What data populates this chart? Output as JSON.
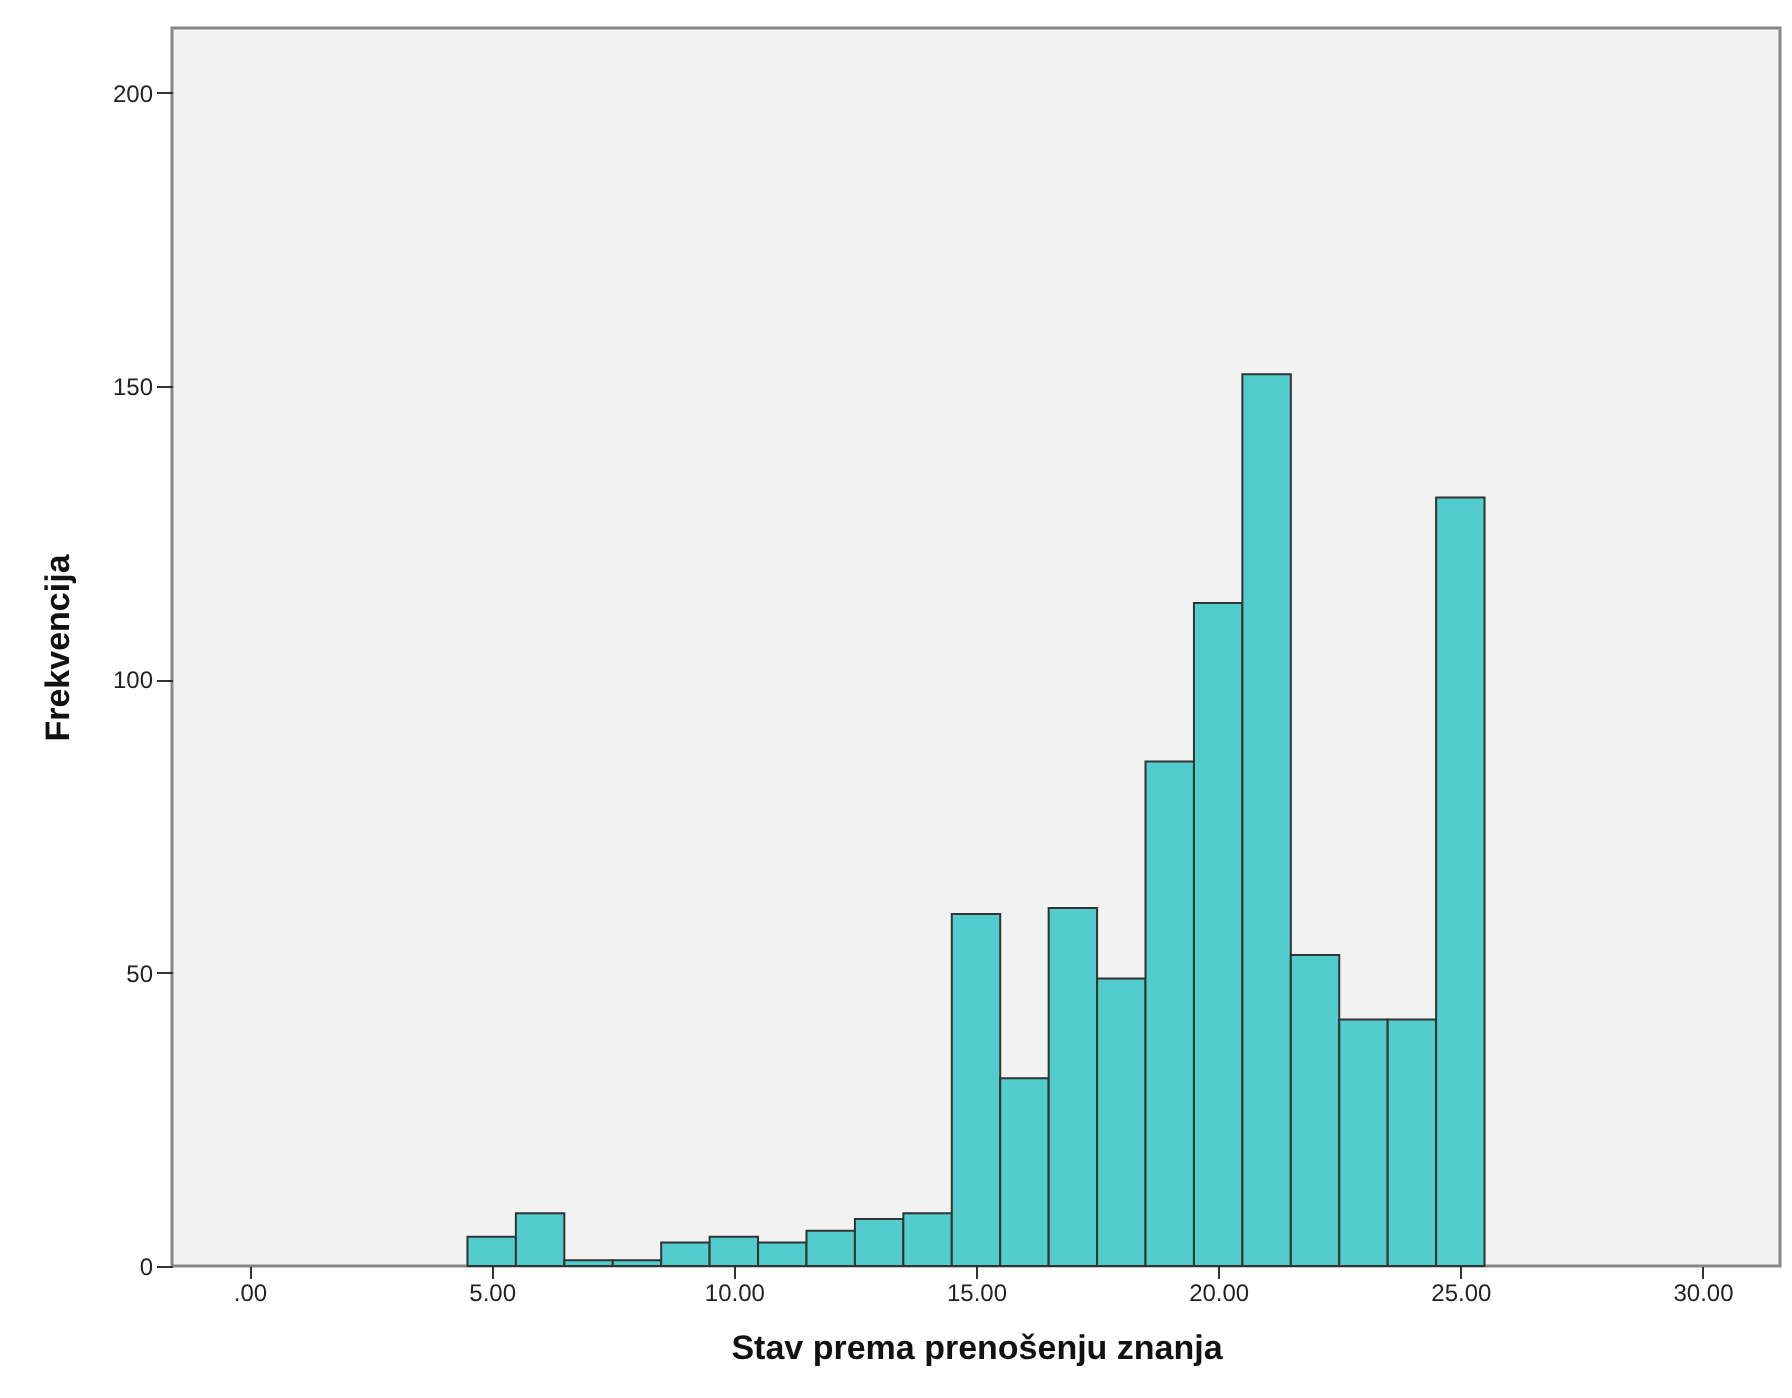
{
  "chart_data": {
    "type": "histogram",
    "xlabel": "Stav prema prenošenju znanja",
    "ylabel": "Frekvencija",
    "bins": [
      4.5,
      5.5,
      6.5,
      7.5,
      8.5,
      9.5,
      10.5,
      11.5,
      12.5,
      13.5,
      14.5,
      15.5,
      16.5,
      17.5,
      18.5,
      19.5,
      20.5,
      21.5,
      22.5,
      23.5,
      24.5,
      25.5
    ],
    "values": [
      5,
      9,
      1,
      1,
      4,
      5,
      4,
      6,
      8,
      9,
      60,
      32,
      61,
      49,
      86,
      113,
      152,
      53,
      42,
      42,
      131
    ],
    "color": "#52cccc",
    "xlim": [
      -1.6,
      31.6
    ],
    "xticks": [
      {
        "value": 0,
        "label": ".00"
      },
      {
        "value": 5,
        "label": "5.00"
      },
      {
        "value": 10,
        "label": "10.00"
      },
      {
        "value": 15,
        "label": "15.00"
      },
      {
        "value": 20,
        "label": "20.00"
      },
      {
        "value": 25,
        "label": "25.00"
      },
      {
        "value": 30,
        "label": "30.00"
      }
    ],
    "ylim": [
      0,
      211
    ],
    "yticks": [
      0,
      50,
      100,
      150,
      200
    ],
    "grid": false
  }
}
